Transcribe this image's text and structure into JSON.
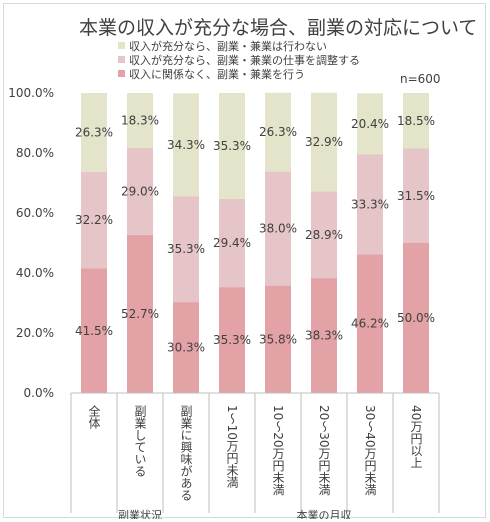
{
  "chart_data": {
    "type": "bar",
    "stacked": true,
    "title": "本業の収入が充分な場合、副業の対応について",
    "note": "n=600",
    "categories": [
      "全体",
      "副業している",
      "副業に興味がある",
      "1～10万円未満",
      "10～20万円未満",
      "20～30万円未満",
      "30～40万円未満",
      "40万円以上"
    ],
    "groups": [
      {
        "label": "副業状況",
        "categories": [
          "全体",
          "副業している",
          "副業に興味がある"
        ]
      },
      {
        "label": "本業の月収",
        "categories": [
          "1～10万円未満",
          "10～20万円未満",
          "20～30万円未満",
          "30～40万円未満",
          "40万円以上"
        ]
      }
    ],
    "series": [
      {
        "name": "収入に関係なく、副業・兼業を行う",
        "color": "#E3A2A6",
        "values": [
          41.5,
          52.7,
          30.3,
          35.3,
          35.8,
          38.3,
          46.2,
          50.0
        ],
        "labels": [
          "41.5%",
          "52.7%",
          "30.3%",
          "35.3%",
          "35.8%",
          "38.3%",
          "46.2%",
          "50.0%"
        ]
      },
      {
        "name": "収入が充分なら、副業・兼業の仕事を調整する",
        "color": "#E6C5C8",
        "values": [
          32.2,
          29.0,
          35.3,
          29.4,
          38.0,
          28.9,
          33.3,
          31.5
        ],
        "labels": [
          "32.2%",
          "29.0%",
          "35.3%",
          "29.4%",
          "38.0%",
          "28.9%",
          "33.3%",
          "31.5%"
        ]
      },
      {
        "name": "収入が充分なら、副業・兼業は行わない",
        "color": "#E3E4C9",
        "values": [
          26.3,
          18.3,
          34.3,
          35.3,
          26.3,
          32.9,
          20.4,
          18.5
        ],
        "labels": [
          "26.3%",
          "18.3%",
          "34.3%",
          "35.3%",
          "26.3%",
          "32.9%",
          "20.4%",
          "18.5%"
        ]
      }
    ],
    "legend_order": [
      "収入が充分なら、副業・兼業は行わない",
      "収入が充分なら、副業・兼業の仕事を調整する",
      "収入に関係なく、副業・兼業を行う"
    ],
    "yticks": [
      "0.0%",
      "20.0%",
      "40.0%",
      "60.0%",
      "80.0%",
      "100.0%"
    ],
    "ylim": [
      0,
      100
    ],
    "grid": false,
    "legend_position": "top-left"
  }
}
